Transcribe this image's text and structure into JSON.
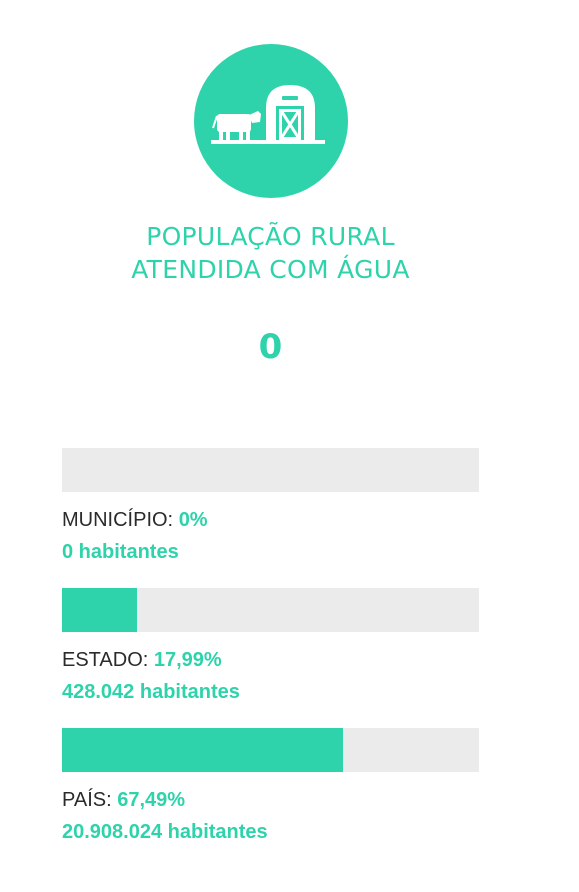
{
  "icon": {
    "name": "farm-barn-cow-icon",
    "color": "#2ed3ab"
  },
  "title": {
    "line1": "POPULAÇÃO RURAL",
    "line2": "ATENDIDA COM ÁGUA"
  },
  "main_value": "0",
  "colors": {
    "accent": "#2ed3ab",
    "track": "#ebebeb",
    "text": "#2b2b2b"
  },
  "stats": [
    {
      "label": "MUNICÍPIO:",
      "percent_text": "0%",
      "fraction": 0.0,
      "habitantes": "0 habitantes"
    },
    {
      "label": "ESTADO:",
      "percent_text": "17,99%",
      "fraction": 0.1799,
      "habitantes": "428.042 habitantes"
    },
    {
      "label": "PAÍS:",
      "percent_text": "67,49%",
      "fraction": 0.6749,
      "habitantes": "20.908.024 habitantes"
    }
  ]
}
